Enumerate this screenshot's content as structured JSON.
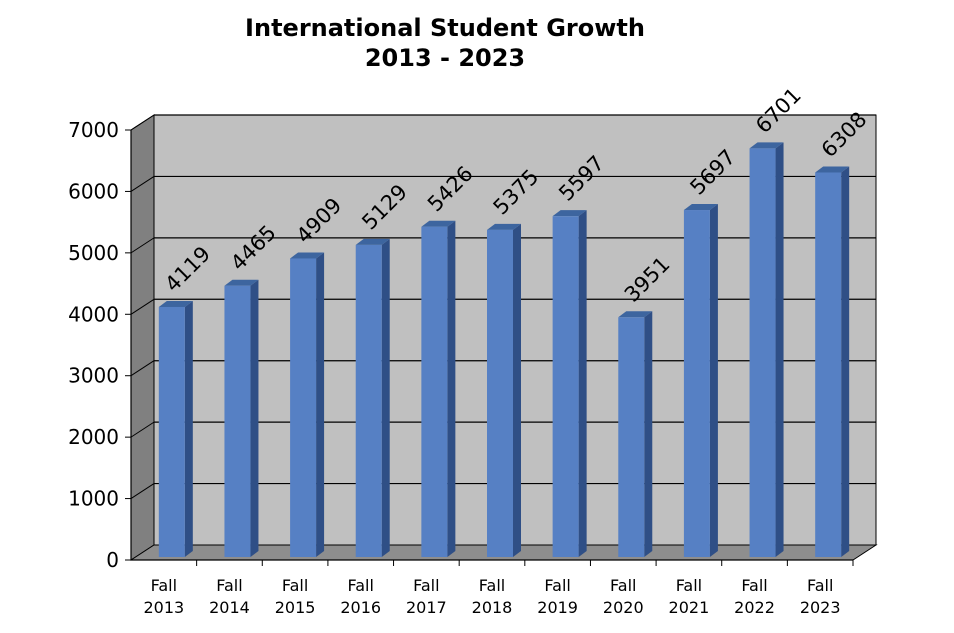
{
  "chart_data": {
    "type": "bar",
    "title": "International Student Growth",
    "subtitle": "2013 - 2023",
    "categories": [
      [
        "Fall",
        "2013"
      ],
      [
        "Fall",
        "2014"
      ],
      [
        "Fall",
        "2015"
      ],
      [
        "Fall",
        "2016"
      ],
      [
        "Fall",
        "2017"
      ],
      [
        "Fall",
        "2018"
      ],
      [
        "Fall",
        "2019"
      ],
      [
        "Fall",
        "2020"
      ],
      [
        "Fall",
        "2021"
      ],
      [
        "Fall",
        "2022"
      ],
      [
        "Fall",
        "2023"
      ]
    ],
    "values": [
      4119,
      4465,
      4909,
      5129,
      5426,
      5375,
      5597,
      3951,
      5697,
      6701,
      6308
    ],
    "ylim": [
      0,
      7000
    ],
    "yticks": [
      0,
      1000,
      2000,
      3000,
      4000,
      5000,
      6000,
      7000
    ],
    "grid": true,
    "data_labels": true,
    "colors": {
      "bar_front": "#5680C4",
      "bar_side": "#2F4F86",
      "bar_top": "#3D659F",
      "plot_back": "#C0C0C0",
      "plot_floor": "#8E8E8E",
      "plot_wall": "#808080"
    }
  }
}
